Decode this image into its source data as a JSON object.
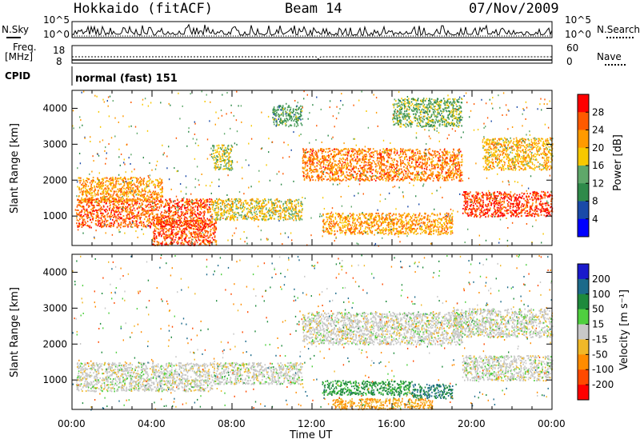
{
  "header": {
    "station": "Hokkaido (fitACF)",
    "beam": "Beam 14",
    "date": "07/Nov/2009"
  },
  "noise_panel": {
    "left_label": "N.Sky",
    "right_label": "N.Search",
    "ticks_left": [
      "10^5",
      "10^0"
    ],
    "ticks_right": [
      "10^5",
      "10^0"
    ]
  },
  "freq_panel": {
    "label_line1": "Freq.",
    "label_line2": "[MHz]",
    "ticks_left": [
      "18",
      "8"
    ],
    "ticks_right": [
      "60",
      "0"
    ],
    "right_label": "Nave"
  },
  "cpid_panel": {
    "label": "CPID",
    "program": "normal (fast) 151"
  },
  "power_panel": {
    "ylabel": "Slant Range [km]",
    "colorbar_label": "Power [dB]",
    "colorbar_ticks": [
      "28",
      "24",
      "20",
      "16",
      "12",
      "8",
      "4"
    ],
    "colorbar_colors": [
      "#ff0000",
      "#ff5a00",
      "#ff9a00",
      "#f7c800",
      "#5fa86a",
      "#2f8a4a",
      "#1a4aa8",
      "#0000ff"
    ]
  },
  "velocity_panel": {
    "ylabel": "Slant Range [km]",
    "colorbar_label": "Velocity [m s⁻¹]",
    "colorbar_ticks": [
      "200",
      "100",
      "50",
      "15",
      "-15",
      "-50",
      "-100",
      "-200"
    ],
    "colorbar_colors": [
      "#1a1acc",
      "#1c6a8a",
      "#1e8a3c",
      "#4fcf3f",
      "#c8c8c8",
      "#f0b828",
      "#ff8c00",
      "#ff4a00",
      "#ff0000"
    ]
  },
  "x_axis": {
    "label": "Time UT",
    "ticks": [
      "00:00",
      "04:00",
      "08:00",
      "12:00",
      "16:00",
      "20:00",
      "00:00"
    ]
  },
  "chart_data": [
    {
      "type": "heatmap",
      "title": "Power",
      "ylabel": "Slant Range [km]",
      "xlabel": "Time UT",
      "x_range_hours": [
        0,
        24
      ],
      "ylim": [
        180,
        4500
      ],
      "y_ticks": [
        1000,
        2000,
        3000,
        4000
      ],
      "colorbar": {
        "label": "Power [dB]",
        "min": 0,
        "max": 32
      },
      "regions": [
        {
          "t": [
            0.2,
            7.0
          ],
          "r": [
            700,
            1500
          ],
          "db": 26
        },
        {
          "t": [
            0.3,
            4.5
          ],
          "r": [
            1400,
            2100
          ],
          "db": 22
        },
        {
          "t": [
            4.0,
            7.2
          ],
          "r": [
            200,
            900
          ],
          "db": 27
        },
        {
          "t": [
            7.0,
            11.5
          ],
          "r": [
            900,
            1500
          ],
          "db": 18
        },
        {
          "t": [
            7.0,
            8.0
          ],
          "r": [
            2300,
            3000
          ],
          "db": 16
        },
        {
          "t": [
            10.0,
            11.5
          ],
          "r": [
            3500,
            4100
          ],
          "db": 12
        },
        {
          "t": [
            11.5,
            19.5
          ],
          "r": [
            2000,
            2900
          ],
          "db": 24
        },
        {
          "t": [
            12.5,
            19.0
          ],
          "r": [
            500,
            1100
          ],
          "db": 22
        },
        {
          "t": [
            19.5,
            24.0
          ],
          "r": [
            1000,
            1700
          ],
          "db": 28
        },
        {
          "t": [
            20.5,
            24.0
          ],
          "r": [
            2300,
            3200
          ],
          "db": 20
        },
        {
          "t": [
            16.0,
            19.5
          ],
          "r": [
            3500,
            4300
          ],
          "db": 14
        }
      ]
    },
    {
      "type": "heatmap",
      "title": "Velocity",
      "ylabel": "Slant Range [km]",
      "xlabel": "Time UT",
      "x_range_hours": [
        0,
        24
      ],
      "ylim": [
        180,
        4500
      ],
      "y_ticks": [
        1000,
        2000,
        3000,
        4000
      ],
      "colorbar": {
        "label": "Velocity [m s⁻¹]",
        "min": -200,
        "max": 200
      },
      "regions": [
        {
          "t": [
            0.2,
            7.0
          ],
          "r": [
            700,
            1500
          ],
          "v": 0
        },
        {
          "t": [
            7.0,
            11.5
          ],
          "r": [
            900,
            1500
          ],
          "v": 0
        },
        {
          "t": [
            11.5,
            19.5
          ],
          "r": [
            2000,
            2900
          ],
          "v": 0
        },
        {
          "t": [
            12.5,
            17.0
          ],
          "r": [
            600,
            1000
          ],
          "v": 60
        },
        {
          "t": [
            17.0,
            19.0
          ],
          "r": [
            500,
            900
          ],
          "v": 100
        },
        {
          "t": [
            19.5,
            24.0
          ],
          "r": [
            1000,
            1700
          ],
          "v": 0
        },
        {
          "t": [
            19.0,
            24.0
          ],
          "r": [
            2200,
            3000
          ],
          "v": 0
        },
        {
          "t": [
            13.0,
            18.0
          ],
          "r": [
            200,
            500
          ],
          "v": -50
        }
      ]
    }
  ]
}
